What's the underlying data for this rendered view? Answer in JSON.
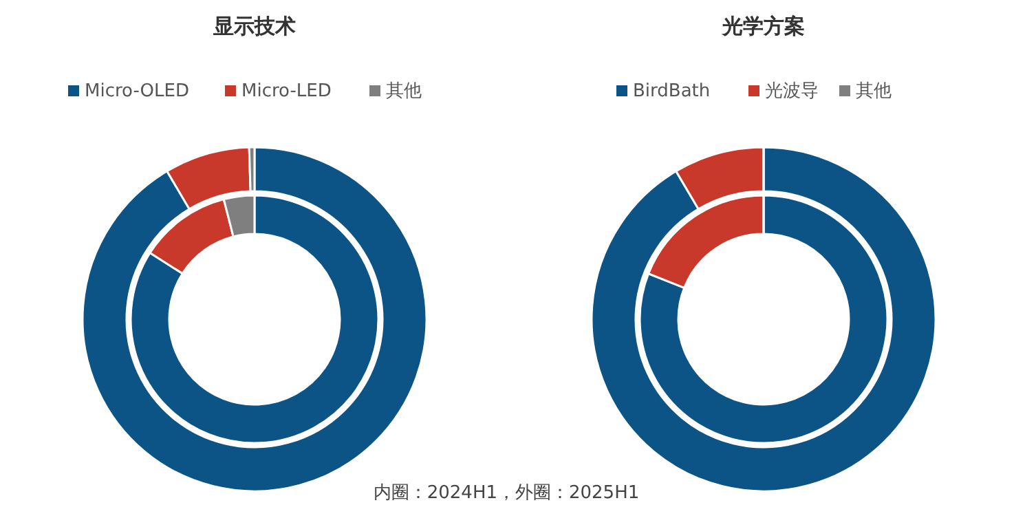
{
  "chart_data": [
    {
      "type": "donut",
      "title": "显示技术",
      "categories": [
        "Micro-OLED",
        "Micro-LED",
        "其他"
      ],
      "colors": [
        "#0b5485",
        "#c8392b",
        "#7f7f7f"
      ],
      "legend": "top",
      "series": [
        {
          "values": [
            84,
            12,
            4
          ]
        },
        {
          "values": [
            91.5,
            8,
            0.5
          ]
        }
      ]
    },
    {
      "type": "donut",
      "title": "光学方案",
      "categories": [
        "BirdBath",
        "光波导",
        "其他"
      ],
      "colors": [
        "#0b5485",
        "#c8392b",
        "#7f7f7f"
      ],
      "legend": "top",
      "annotations": [
        "内圈：2024H1，外圈：2025H1"
      ],
      "series": [
        {
          "values": [
            81,
            19,
            0
          ]
        },
        {
          "values": [
            91.5,
            8.5,
            0
          ]
        }
      ]
    }
  ]
}
